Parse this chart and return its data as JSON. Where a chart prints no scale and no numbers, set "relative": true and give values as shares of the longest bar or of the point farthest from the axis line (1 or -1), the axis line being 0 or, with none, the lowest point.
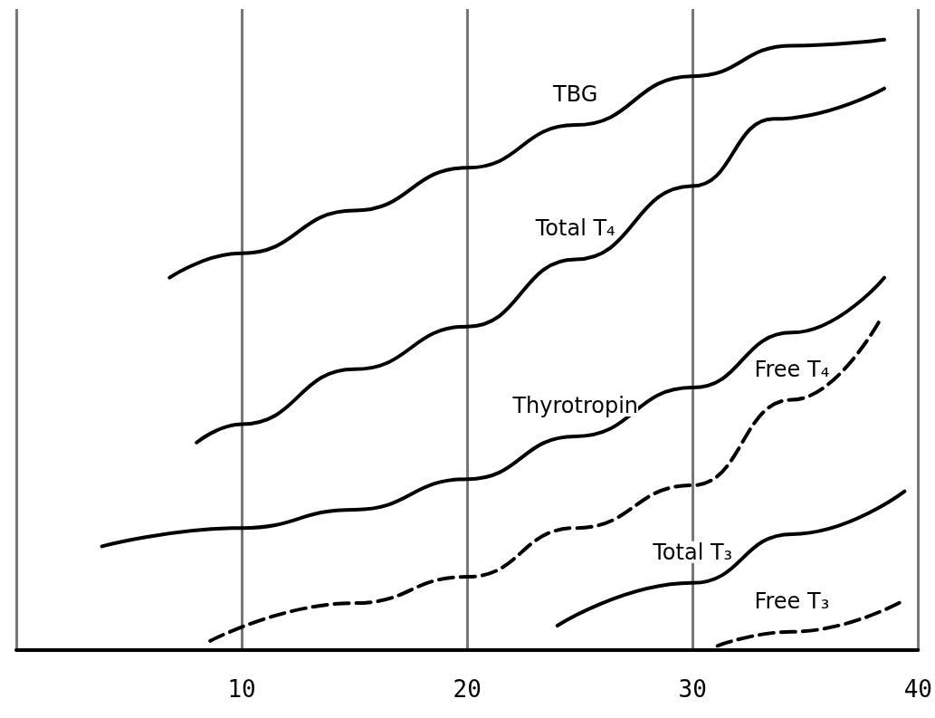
{
  "chart_data": {
    "type": "line",
    "relative": true,
    "xlim": [
      0,
      40
    ],
    "xticks": [
      {
        "value": 0,
        "label": null
      },
      10,
      20,
      30,
      40
    ],
    "grid": "x",
    "marker": "none",
    "legend": false,
    "series": [
      {
        "name": "TBG",
        "color": "#000000",
        "line_style": "solid",
        "x": [
          6.8,
          10,
          15,
          20,
          24.8,
          30,
          34.4,
          38.5
        ],
        "values": [
          0.61,
          0.65,
          0.72,
          0.79,
          0.86,
          0.94,
          0.99,
          1.0
        ]
      },
      {
        "name": "Total T₄",
        "color": "#000000",
        "line_style": "solid",
        "x": [
          8,
          10,
          15,
          20,
          24.8,
          30,
          33.6,
          38.5
        ],
        "values": [
          0.34,
          0.37,
          0.46,
          0.53,
          0.64,
          0.76,
          0.87,
          0.92
        ]
      },
      {
        "name": "Thyrotropin",
        "color": "#000000",
        "line_style": "solid",
        "x": [
          3.8,
          10,
          15,
          20,
          24.8,
          30,
          34.4,
          38.5
        ],
        "values": [
          0.17,
          0.2,
          0.23,
          0.28,
          0.35,
          0.43,
          0.52,
          0.61
        ]
      },
      {
        "name": "Free T₄",
        "color": "#000000",
        "line_style": "dashed",
        "x": [
          8.6,
          15,
          20,
          24.8,
          30,
          34.4,
          38.3
        ],
        "values": [
          0.015,
          0.077,
          0.12,
          0.2,
          0.27,
          0.41,
          0.54
        ]
      },
      {
        "name": "Total T₃",
        "color": "#000000",
        "line_style": "solid",
        "x": [
          24,
          30,
          34.4,
          39.4
        ],
        "values": [
          0.04,
          0.11,
          0.19,
          0.26
        ]
      },
      {
        "name": "Free T₃",
        "color": "#000000",
        "line_style": "dashed",
        "x": [
          31.1,
          34.4,
          39.3
        ],
        "values": [
          0.007,
          0.03,
          0.08
        ]
      }
    ]
  }
}
